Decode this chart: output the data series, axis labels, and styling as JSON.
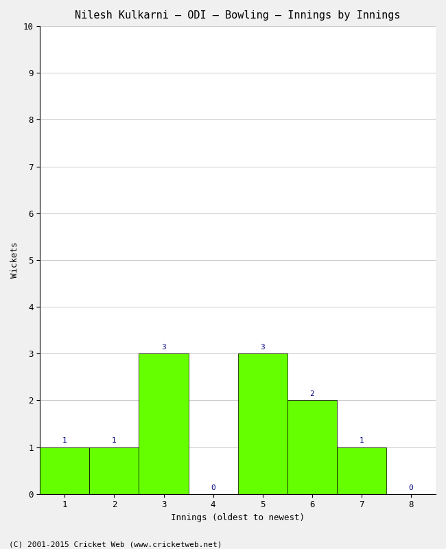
{
  "title": "Nilesh Kulkarni – ODI – Bowling – Innings by Innings",
  "xlabel": "Innings (oldest to newest)",
  "ylabel": "Wickets",
  "categories": [
    1,
    2,
    3,
    4,
    5,
    6,
    7,
    8
  ],
  "values": [
    1,
    1,
    3,
    0,
    3,
    2,
    1,
    0
  ],
  "bar_color": "#66ff00",
  "bar_edge_color": "#000000",
  "ylim": [
    0,
    10
  ],
  "yticks": [
    0,
    1,
    2,
    3,
    4,
    5,
    6,
    7,
    8,
    9,
    10
  ],
  "label_color": "#000080",
  "label_fontsize": 8,
  "title_fontsize": 11,
  "axis_fontsize": 9,
  "tick_fontsize": 9,
  "footer_text": "(C) 2001-2015 Cricket Web (www.cricketweb.net)",
  "footer_fontsize": 8,
  "background_color": "#f0f0f0",
  "grid_color": "#cccccc"
}
